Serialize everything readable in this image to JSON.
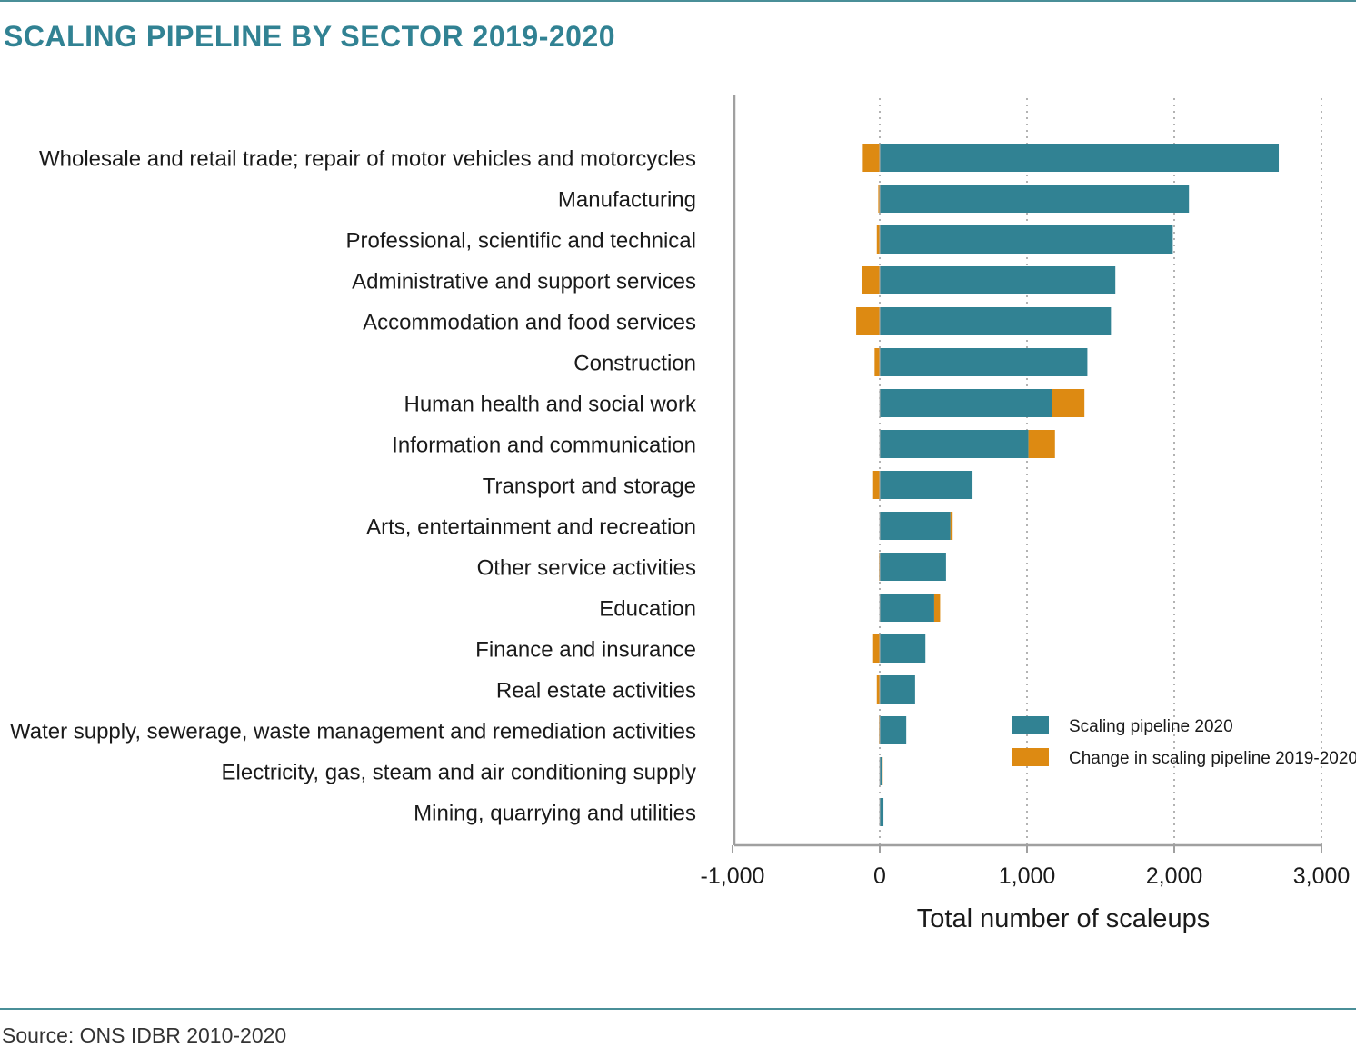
{
  "title": "SCALING PIPELINE BY SECTOR 2019-2020",
  "source": "Source: ONS IDBR 2010-2020",
  "colors": {
    "pipeline": "#318293",
    "change": "#dd8a12",
    "accent": "#4a8f98"
  },
  "chart_data": {
    "type": "bar",
    "orientation": "horizontal",
    "stacked": true,
    "xlabel": "Total number of scaleups",
    "ylabel": "",
    "xlim": [
      -1000,
      3000
    ],
    "xticks": [
      -1000,
      0,
      1000,
      2000,
      3000
    ],
    "xtick_labels": [
      "-1,000",
      "0",
      "1,000",
      "2,000",
      "3,000"
    ],
    "grid": "vertical dotted",
    "legend_position": "bottom-right",
    "categories": [
      "Wholesale and retail trade; repair of motor vehicles and motorcycles",
      "Manufacturing",
      "Professional, scientific and technical",
      "Administrative and support services",
      "Accommodation and food services",
      "Construction",
      "Human health and social work",
      "Information and communication",
      "Transport and storage",
      "Arts, entertainment and recreation",
      "Other service activities",
      "Education",
      "Finance and insurance",
      "Real estate activities",
      "Water supply, sewerage, waste management and remediation activities",
      "Electricity, gas, steam and air conditioning supply",
      "Mining, quarrying and utilities"
    ],
    "series": [
      {
        "name": "Scaling pipeline 2020",
        "color": "#318293",
        "values": [
          2710,
          2100,
          1990,
          1600,
          1570,
          1410,
          1170,
          1010,
          630,
          480,
          450,
          370,
          310,
          240,
          180,
          15,
          25
        ]
      },
      {
        "name": "Change in scaling pipeline 2019-2020",
        "color": "#dd8a12",
        "values": [
          -115,
          -10,
          -20,
          -120,
          -160,
          -35,
          220,
          180,
          -45,
          15,
          -5,
          40,
          -45,
          -20,
          -5,
          5,
          0
        ]
      }
    ]
  }
}
